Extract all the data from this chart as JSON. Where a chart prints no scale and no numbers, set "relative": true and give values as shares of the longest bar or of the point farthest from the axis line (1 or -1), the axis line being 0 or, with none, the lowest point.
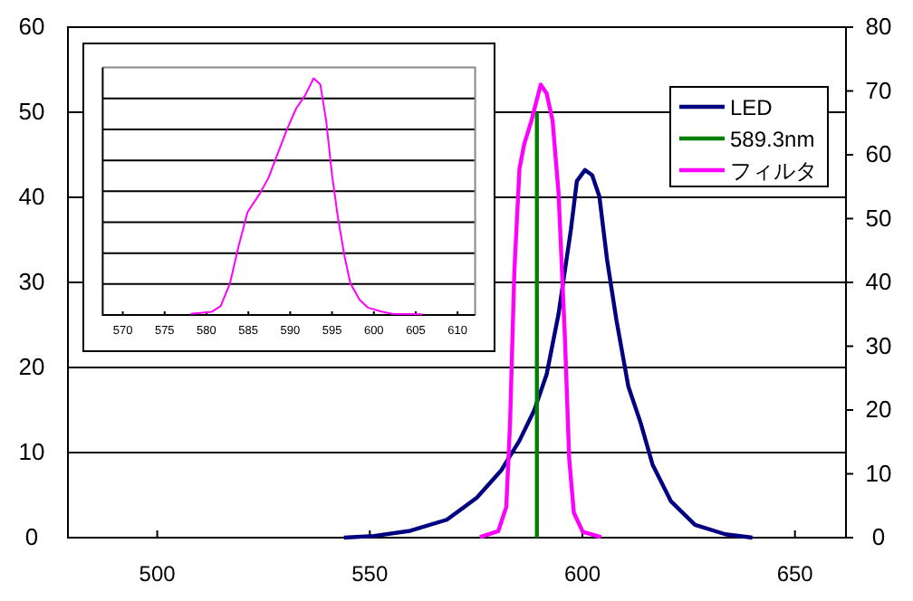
{
  "chart_data": [
    {
      "type": "line",
      "xlim": [
        479,
        662
      ],
      "xticks": [
        500,
        550,
        600,
        650
      ],
      "ylim": [
        0,
        60
      ],
      "yticks": [
        0,
        10,
        20,
        30,
        40,
        50,
        60
      ],
      "y2lim": [
        0,
        80
      ],
      "y2ticks": [
        0,
        10,
        20,
        30,
        40,
        50,
        60,
        70,
        80
      ],
      "grid": "y",
      "legend": "top right",
      "series": [
        {
          "name": "LED",
          "color": "#000080",
          "x": [
            543.9,
            551.0,
            559.5,
            568.1,
            575.2,
            580.9,
            585.2,
            588.7,
            591.6,
            594.4,
            597.3,
            598.7,
            600.6,
            602.3,
            604.0,
            605.8,
            608.0,
            610.8,
            613.7,
            616.5,
            620.8,
            626.5,
            633.6,
            640.0
          ],
          "values": [
            0,
            0.2,
            0.8,
            2.1,
            4.7,
            7.9,
            11.4,
            15.0,
            19.2,
            26.3,
            36.2,
            41.9,
            43.2,
            42.6,
            40.1,
            32.7,
            25.6,
            17.8,
            13.5,
            8.6,
            4.3,
            1.5,
            0.4,
            0
          ]
        },
        {
          "name": "589.3nm",
          "color": "#008000",
          "x": [
            589.3,
            589.3
          ],
          "values": [
            0,
            50
          ]
        },
        {
          "name": "フィルタ",
          "color": "#ff00ff",
          "axis": "y2",
          "x": [
            575.9,
            580.2,
            582.1,
            583.0,
            584.0,
            585.2,
            586.3,
            588.0,
            590.2,
            591.6,
            593.0,
            594.4,
            595.9,
            596.9,
            598.0,
            600.1,
            604.4
          ],
          "values": [
            0.1,
            1.0,
            4.8,
            18.1,
            41.7,
            57.8,
            61.6,
            65.3,
            71.0,
            69.6,
            65.3,
            54.0,
            31.3,
            12.4,
            3.9,
            0.9,
            0.1
          ]
        }
      ]
    },
    {
      "type": "line",
      "relative": true,
      "xlim": [
        567.6,
        612.1
      ],
      "xticks": [
        570,
        575,
        580,
        585,
        590,
        595,
        600,
        605,
        610
      ],
      "grid": "y",
      "series": [
        {
          "color": "#ff00ff",
          "x": [
            578.1,
            580.6,
            581.7,
            582.8,
            583.8,
            584.9,
            586.4,
            587.4,
            588.5,
            589.6,
            590.7,
            591.8,
            592.8,
            593.6,
            594.3,
            595.0,
            595.7,
            596.5,
            597.2,
            598.3,
            599.3,
            600.8,
            602.2,
            605.8
          ],
          "values": [
            0.005,
            0.013,
            0.038,
            0.133,
            0.286,
            0.434,
            0.515,
            0.579,
            0.681,
            0.783,
            0.872,
            0.929,
            1.0,
            0.974,
            0.821,
            0.592,
            0.413,
            0.247,
            0.133,
            0.064,
            0.031,
            0.015,
            0.005,
            0.003
          ]
        }
      ]
    }
  ]
}
